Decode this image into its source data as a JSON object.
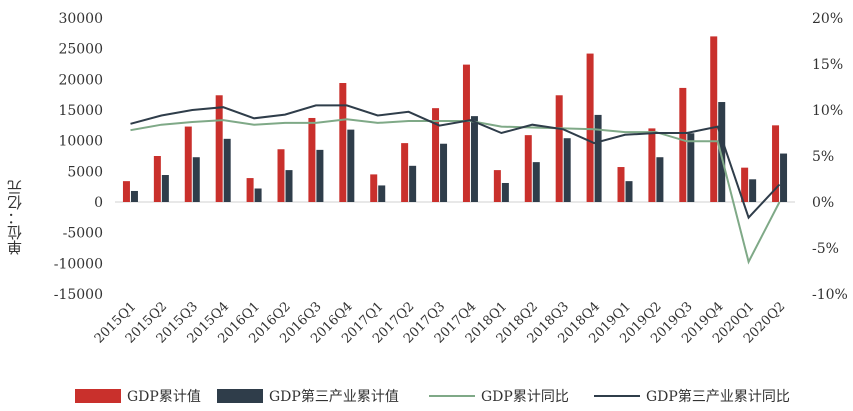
{
  "chart_data": {
    "type": "bar",
    "categories": [
      "2015Q1",
      "2015Q2",
      "2015Q3",
      "2015Q4",
      "2016Q1",
      "2016Q2",
      "2016Q3",
      "2016Q4",
      "2017Q1",
      "2017Q2",
      "2017Q3",
      "2017Q4",
      "2018Q1",
      "2018Q2",
      "2018Q3",
      "2018Q4",
      "2019Q1",
      "2019Q2",
      "2019Q3",
      "2019Q4",
      "2020Q1",
      "2020Q2"
    ],
    "ylabel": "单位：亿元",
    "ylim": [
      -15000,
      30000
    ],
    "yticks": [
      "30000",
      "25000",
      "20000",
      "15000",
      "10000",
      "5000",
      "0",
      "-5000",
      "-10000",
      "-15000"
    ],
    "y2lim": [
      -10,
      20
    ],
    "y2ticks": [
      "20%",
      "15%",
      "10%",
      "5%",
      "0%",
      "-5%",
      "-10%"
    ],
    "series": [
      {
        "name": "GDP累计值",
        "kind": "bar",
        "axis": "left",
        "color": "#c9302c",
        "values": [
          3400,
          7500,
          12300,
          17400,
          3900,
          8600,
          13700,
          19400,
          4500,
          9600,
          15300,
          22400,
          5200,
          10900,
          17400,
          24200,
          5700,
          12000,
          18600,
          27000,
          5600,
          12500
        ]
      },
      {
        "name": "GDP第三产业累计值",
        "kind": "bar",
        "axis": "left",
        "color": "#2f3d4a",
        "values": [
          1800,
          4400,
          7300,
          10300,
          2200,
          5200,
          8500,
          11800,
          2700,
          5900,
          9500,
          14000,
          3100,
          6500,
          10400,
          14200,
          3400,
          7300,
          11200,
          16300,
          3700,
          7900
        ]
      },
      {
        "name": "GDP累计同比",
        "kind": "line",
        "axis": "right",
        "color": "#7fa987",
        "values": [
          7.8,
          8.4,
          8.7,
          8.9,
          8.4,
          8.6,
          8.6,
          9.0,
          8.6,
          8.8,
          8.8,
          8.8,
          8.2,
          8.1,
          8.0,
          7.9,
          7.6,
          7.6,
          6.6,
          6.6,
          -6.5,
          0.0
        ]
      },
      {
        "name": "GDP第三产业累计同比",
        "kind": "line",
        "axis": "right",
        "color": "#2f3d4a",
        "values": [
          8.5,
          9.4,
          10.0,
          10.3,
          9.1,
          9.5,
          10.5,
          10.5,
          9.4,
          9.8,
          8.3,
          8.9,
          7.5,
          8.4,
          7.9,
          6.4,
          7.3,
          7.5,
          7.5,
          8.2,
          -1.7,
          1.9
        ]
      }
    ]
  }
}
